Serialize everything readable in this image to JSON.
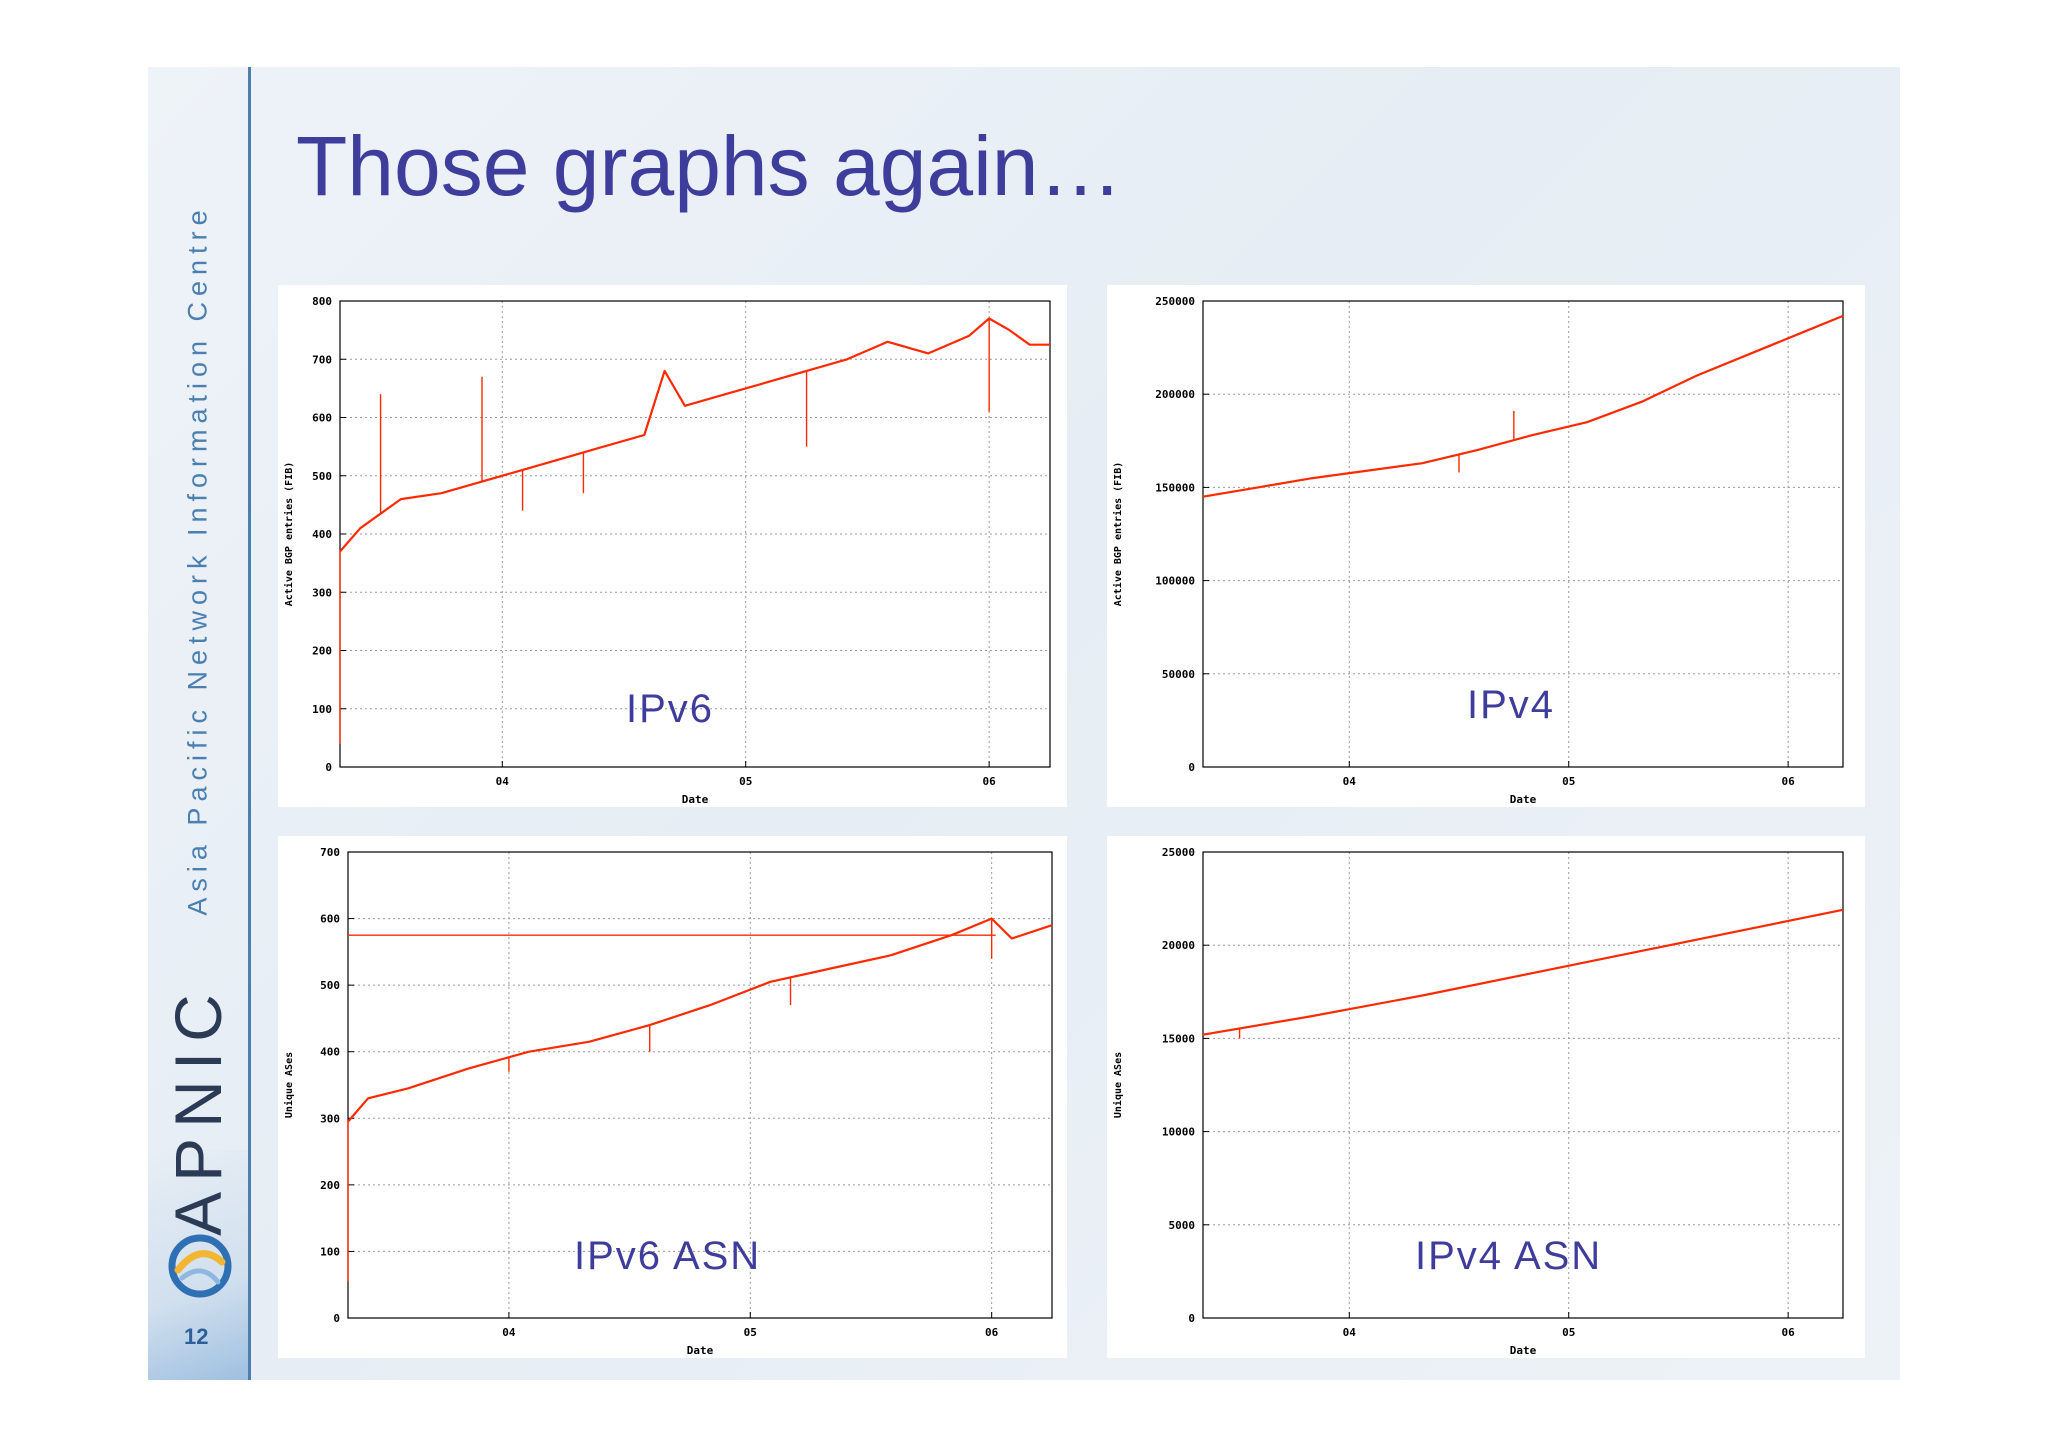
{
  "slide": {
    "title": "Those graphs again…",
    "sidebar_text": "Asia Pacific Network Information Centre",
    "brand": "APNIC",
    "page_number": "12",
    "colors": {
      "title": "#3f3d9c",
      "accent": "#4a7fb0",
      "series": "#ff2a00"
    }
  },
  "chart_data": [
    {
      "id": "ipv6-fib",
      "type": "line",
      "overlay_label": "IPv6",
      "xlabel": "Date",
      "ylabel": "Active BGP entries (FIB)",
      "xlim": [
        "2003-05",
        "2006-04"
      ],
      "ylim": [
        0,
        800
      ],
      "xticks": [
        {
          "label": "04",
          "value": "2004-01"
        },
        {
          "label": "05",
          "value": "2005-01"
        },
        {
          "label": "06",
          "value": "2006-01"
        }
      ],
      "yticks": [
        "0",
        "100",
        "200",
        "300",
        "400",
        "500",
        "600",
        "700",
        "800"
      ],
      "grid": true,
      "series": [
        {
          "color": "#ff2a00",
          "x": [
            "2003-05",
            "2003-06",
            "2003-08",
            "2003-10",
            "2003-12",
            "2004-02",
            "2004-04",
            "2004-06",
            "2004-08",
            "2004-09",
            "2004-10",
            "2004-12",
            "2005-02",
            "2005-04",
            "2005-06",
            "2005-08",
            "2005-10",
            "2005-12",
            "2006-01",
            "2006-02",
            "2006-03",
            "2006-04"
          ],
          "y": [
            370,
            410,
            460,
            470,
            490,
            510,
            530,
            550,
            570,
            680,
            620,
            640,
            660,
            680,
            700,
            730,
            710,
            740,
            770,
            750,
            725,
            725
          ]
        }
      ],
      "spikes": [
        {
          "x": "2003-05",
          "y": 40
        },
        {
          "x": "2003-07",
          "y": 640
        },
        {
          "x": "2003-12",
          "y": 670
        },
        {
          "x": "2004-02",
          "y": 440
        },
        {
          "x": "2004-05",
          "y": 470
        },
        {
          "x": "2005-04",
          "y": 550
        },
        {
          "x": "2006-01",
          "y": 610
        }
      ]
    },
    {
      "id": "ipv4-fib",
      "type": "line",
      "overlay_label": "IPv4",
      "xlabel": "Date",
      "ylabel": "Active BGP entries (FIB)",
      "xlim": [
        "2003-05",
        "2006-04"
      ],
      "ylim": [
        0,
        250000
      ],
      "xticks": [
        {
          "label": "04",
          "value": "2004-01"
        },
        {
          "label": "05",
          "value": "2005-01"
        },
        {
          "label": "06",
          "value": "2006-01"
        }
      ],
      "yticks": [
        "0",
        "50000",
        "100000",
        "150000",
        "200000",
        "250000"
      ],
      "grid": true,
      "series": [
        {
          "color": "#ff2a00",
          "x": [
            "2003-05",
            "2003-08",
            "2003-11",
            "2004-02",
            "2004-05",
            "2004-08",
            "2004-11",
            "2005-02",
            "2005-05",
            "2005-08",
            "2005-11",
            "2006-02",
            "2006-04"
          ],
          "y": [
            145000,
            150000,
            155000,
            159000,
            163000,
            170000,
            178000,
            185000,
            196000,
            210000,
            222000,
            234000,
            242000
          ]
        }
      ],
      "spikes": [
        {
          "x": "2004-10",
          "y": 191000
        },
        {
          "x": "2004-07",
          "y": 158000
        }
      ]
    },
    {
      "id": "ipv6-asn",
      "type": "line",
      "overlay_label": "IPv6  ASN",
      "xlabel": "Date",
      "ylabel": "Unique ASes",
      "xlim": [
        "2003-05",
        "2006-04"
      ],
      "ylim": [
        0,
        700
      ],
      "xticks": [
        {
          "label": "04",
          "value": "2004-01"
        },
        {
          "label": "05",
          "value": "2005-01"
        },
        {
          "label": "06",
          "value": "2006-01"
        }
      ],
      "yticks": [
        "0",
        "100",
        "200",
        "300",
        "400",
        "500",
        "600",
        "700"
      ],
      "grid": true,
      "hline": 575,
      "series": [
        {
          "color": "#ff2a00",
          "x": [
            "2003-05",
            "2003-06",
            "2003-08",
            "2003-11",
            "2004-02",
            "2004-05",
            "2004-08",
            "2004-11",
            "2005-02",
            "2005-05",
            "2005-08",
            "2005-11",
            "2006-01",
            "2006-02",
            "2006-04"
          ],
          "y": [
            295,
            330,
            345,
            375,
            400,
            415,
            440,
            470,
            505,
            525,
            545,
            575,
            600,
            570,
            590
          ]
        }
      ],
      "spikes": [
        {
          "x": "2003-05",
          "y": 55
        },
        {
          "x": "2004-01",
          "y": 370
        },
        {
          "x": "2004-08",
          "y": 400
        },
        {
          "x": "2005-03",
          "y": 470
        },
        {
          "x": "2006-01",
          "y": 540
        }
      ]
    },
    {
      "id": "ipv4-asn",
      "type": "line",
      "overlay_label": "IPv4  ASN",
      "xlabel": "Date",
      "ylabel": "Unique ASes",
      "xlim": [
        "2003-05",
        "2006-04"
      ],
      "ylim": [
        0,
        25000
      ],
      "xticks": [
        {
          "label": "04",
          "value": "2004-01"
        },
        {
          "label": "05",
          "value": "2005-01"
        },
        {
          "label": "06",
          "value": "2006-01"
        }
      ],
      "yticks": [
        "0",
        "5000",
        "10000",
        "15000",
        "20000",
        "25000"
      ],
      "grid": true,
      "series": [
        {
          "color": "#ff2a00",
          "x": [
            "2003-05",
            "2003-11",
            "2004-05",
            "2004-11",
            "2005-05",
            "2005-11",
            "2006-04"
          ],
          "y": [
            15200,
            16200,
            17300,
            18500,
            19700,
            20900,
            21900
          ]
        }
      ],
      "spikes": [
        {
          "x": "2003-07",
          "y": 15000
        }
      ]
    }
  ]
}
